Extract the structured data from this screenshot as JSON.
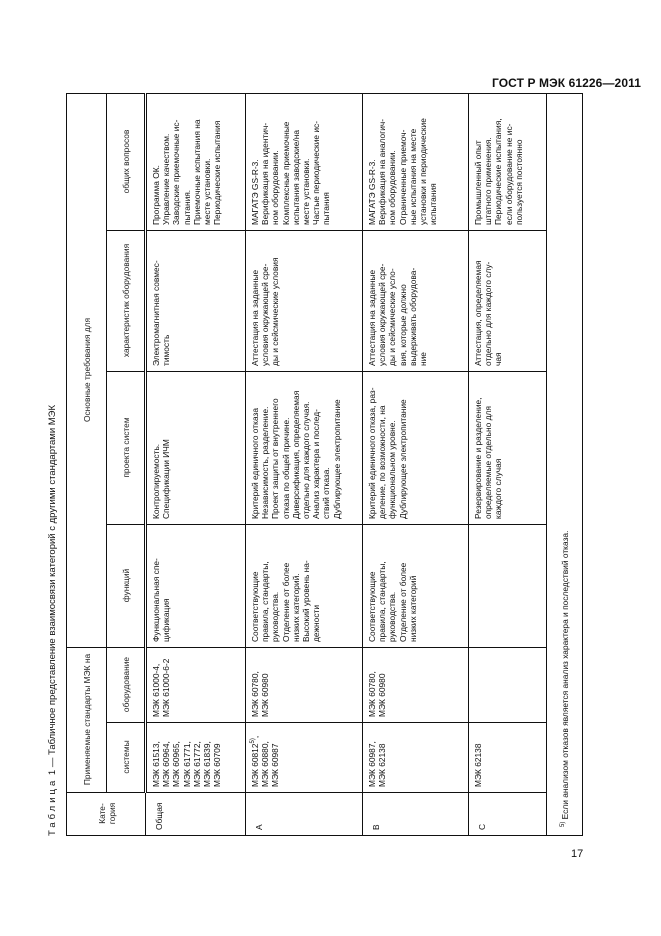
{
  "doc_header": "ГОСТ Р МЭК 61226—2011",
  "page_number": "17",
  "caption": {
    "label": "Таблица",
    "number": "1",
    "text": "— Табличное представление взаимосвязи категорий с другими стандартами МЭК"
  },
  "table": {
    "headers": {
      "category": "Кате-\nгория",
      "applicable": "Применяемые стандарты МЭК на",
      "systems": "системы",
      "equipment": "оборудование",
      "main_requirements": "Основные требования для",
      "functions": "функций",
      "design": "проекта систем",
      "characteristics": "характеристик оборудования",
      "general": "общих вопросов"
    },
    "rows": [
      {
        "category": "Общая",
        "systems": "МЭК 61513,\nМЭК 60964,\nМЭК 60965,\nМЭК 61771,\nМЭК 61772,\nМЭК 61839,\nМЭК 60709",
        "equipment": "МЭК 61000-4,\nМЭК 61000-6-2",
        "functions": "Функциональная спе-\nцификация",
        "design": "Контролируемость.\nСпецификации ИЧМ",
        "characteristics": "Электромагнитная совмес-\nтимость",
        "general": "Программа ОК.\nУправление качеством.\nЗаводские приемочные ис-\nпытания.\nПриемочные испытания на\nместе установки.\nПериодические испытания"
      },
      {
        "category": "А",
        "systems_pre": "МЭК 60812",
        "systems_sup": "5)",
        "systems_post": ",\nМЭК 60880,\nМЭК 60987",
        "equipment": "МЭК 60780,\nМЭК 60980",
        "functions": "Соответствующие\nправила, стандарты,\nруководства.\nОтделение от более\nнизких категорий.\nВысокий уровень на-\nдежности",
        "design": "Критерий единичного отказа\nНезависимость, разделение.\nПроект защиты от внутреннего\nотказа по общей причине.\nДиверсификация, определяемая\nотдельно для каждого случая.\nАнализ характера и послед-\nствий отказа.\nДублирующее электропитание",
        "characteristics": "Аттестация на заданные\nусловия окружающей сре-\nды и сейсмические условия",
        "general": "МАГАТЭ GS-R-3.\nВерификация на идентич-\nном оборудовании.\nКомплексные приемочные\nиспытания заводские/на\nместе установки.\nЧастые периодические ис-\nпытания"
      },
      {
        "category": "В",
        "systems": "МЭК 60987,\nМЭК 62138",
        "equipment": "МЭК 60780,\nМЭК 60980",
        "functions": "Соответствующие\nправила, стандарты,\nруководства.\nОтделение от более\nнизких категорий",
        "design": "Критерий единичного отказа, раз-\nделение, по возможности, на\nфункциональном уровне.\nДублирующее электропитание",
        "characteristics": "Аттестация на заданные\nусловия окружающей сре-\nды и сейсмические усло-\nвия, которые должно\nвыдерживать оборудова-\nние",
        "general": "МАГАТЭ GS-R-3.\nВерификация на аналогич-\nном оборудовании.\nОграниченные приемоч-\nные испытания на месте\nустановки и периодические\nиспытания"
      },
      {
        "category": "С",
        "systems": "МЭК 62138",
        "equipment": "",
        "functions": "",
        "design": "Резервирование и разделение,\nопределяемые отдельно для\nкаждого случая",
        "characteristics": "Аттестация, определяемая\nотдельно для каждого слу-\nчая",
        "general": "Промышленный опыт\nштатного применения.\nПериодические испытания,\nесли оборудование не ис-\nпользуется постоянно"
      }
    ],
    "footnote_mark": "5)",
    "footnote_text": "Если анализом отказов является анализ характера и последствий отказа."
  }
}
